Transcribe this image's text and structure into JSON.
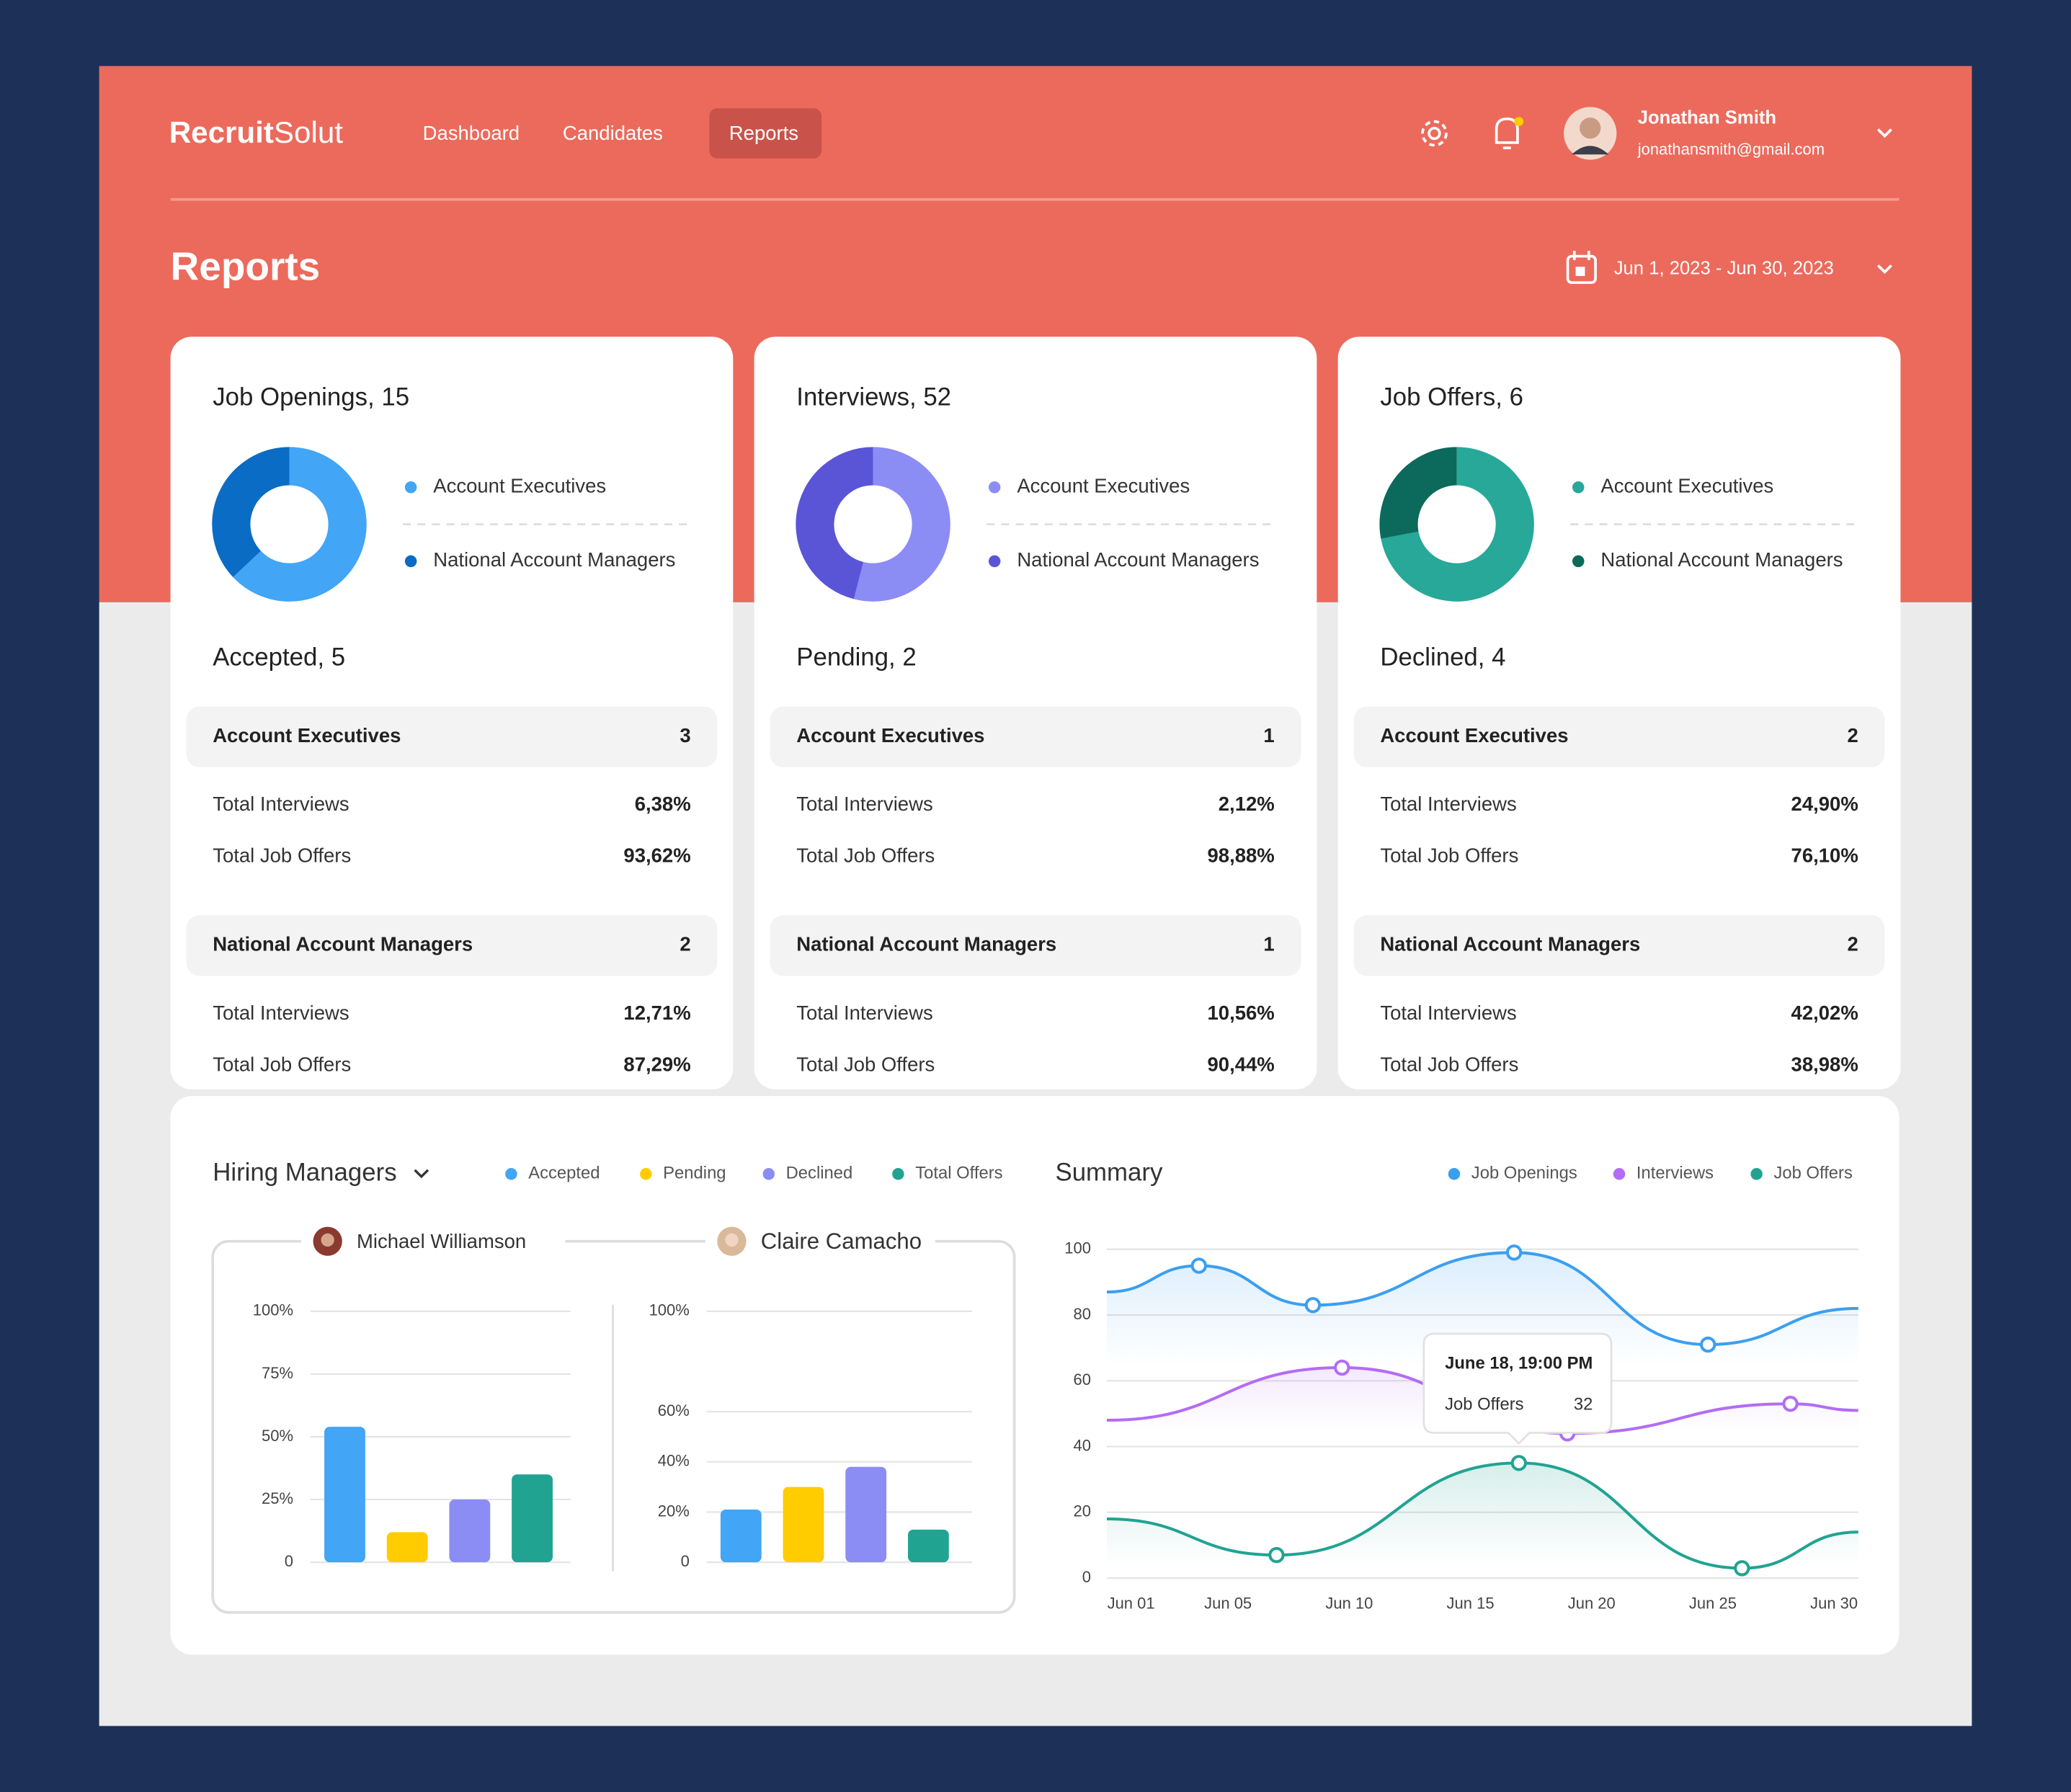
{
  "brand": {
    "bold": "Recruit",
    "light": "Solut"
  },
  "nav": {
    "links": [
      "Dashboard",
      "Candidates",
      "Reports"
    ],
    "active": 2
  },
  "user": {
    "name": "Jonathan Smith",
    "email": "jonathansmith@gmail.com"
  },
  "page_title": "Reports",
  "date_range": "Jun 1, 2023 - Jun 30, 2023",
  "cards": [
    {
      "title": "Job Openings, 15",
      "chart_data": {
        "type": "pie",
        "donut": true,
        "categories": [
          "Account Executives",
          "National Account Managers"
        ],
        "values": [
          63,
          37
        ],
        "colors": [
          "#42a5f5",
          "#0a6cc4"
        ]
      },
      "subtitle": "Accepted, 5",
      "groups": [
        {
          "name": "Account Executives",
          "count": 3,
          "rows": [
            {
              "label": "Total Interviews",
              "value": "6,38%"
            },
            {
              "label": "Total Job Offers",
              "value": "93,62%"
            }
          ]
        },
        {
          "name": "National Account Managers",
          "count": 2,
          "rows": [
            {
              "label": "Total Interviews",
              "value": "12,71%"
            },
            {
              "label": "Total Job Offers",
              "value": "87,29%"
            }
          ]
        }
      ]
    },
    {
      "title": "Interviews, 52",
      "chart_data": {
        "type": "pie",
        "donut": true,
        "categories": [
          "Account Executives",
          "National Account Managers"
        ],
        "values": [
          54,
          46
        ],
        "colors": [
          "#8c8cf5",
          "#5a55d6"
        ]
      },
      "subtitle": "Pending, 2",
      "groups": [
        {
          "name": "Account Executives",
          "count": 1,
          "rows": [
            {
              "label": "Total Interviews",
              "value": "2,12%"
            },
            {
              "label": "Total Job Offers",
              "value": "98,88%"
            }
          ]
        },
        {
          "name": "National Account Managers",
          "count": 1,
          "rows": [
            {
              "label": "Total Interviews",
              "value": "10,56%"
            },
            {
              "label": "Total Job Offers",
              "value": "90,44%"
            }
          ]
        }
      ]
    },
    {
      "title": "Job Offers, 6",
      "chart_data": {
        "type": "pie",
        "donut": true,
        "categories": [
          "Account Executives",
          "National Account Managers"
        ],
        "values": [
          72,
          28
        ],
        "colors": [
          "#27a899",
          "#0b6a5b"
        ]
      },
      "subtitle": "Declined, 4",
      "groups": [
        {
          "name": "Account Executives",
          "count": 2,
          "rows": [
            {
              "label": "Total Interviews",
              "value": "24,90%"
            },
            {
              "label": "Total Job Offers",
              "value": "76,10%"
            }
          ]
        },
        {
          "name": "National Account Managers",
          "count": 2,
          "rows": [
            {
              "label": "Total Interviews",
              "value": "42,02%"
            },
            {
              "label": "Total Job Offers",
              "value": "38,98%"
            }
          ]
        }
      ]
    }
  ],
  "hiring": {
    "title": "Hiring Managers",
    "categories": [
      "Accepted",
      "Pending",
      "Declined",
      "Total Offers"
    ],
    "colors": [
      "#42a5f5",
      "#ffcc00",
      "#8c8cf5",
      "#21a392"
    ],
    "charts": [
      {
        "manager": "Michael Williamson",
        "chart_data": {
          "type": "bar",
          "values": [
            54,
            12,
            25,
            35
          ],
          "ylim": [
            0,
            100
          ],
          "yticks": [
            0,
            {
              "value": 25,
              "label": "25%"
            },
            {
              "value": 50,
              "label": "50%"
            },
            {
              "value": 75,
              "label": "75%"
            },
            {
              "value": 100,
              "label": "100%"
            }
          ],
          "grid": true
        }
      },
      {
        "manager": "Claire Camacho",
        "chart_data": {
          "type": "bar",
          "values": [
            21,
            30,
            38,
            13
          ],
          "ylim": [
            0,
            100
          ],
          "yticks": [
            0,
            {
              "value": 20,
              "label": "20%"
            },
            {
              "value": 40,
              "label": "40%"
            },
            {
              "value": 60,
              "label": "60%"
            },
            {
              "value": 100,
              "label": "100%"
            }
          ],
          "grid": true
        }
      }
    ]
  },
  "summary": {
    "chart_data": {
      "type": "line",
      "title": "Summary",
      "grid": true,
      "xlim": [
        0,
        31
      ],
      "xticks": [
        {
          "value": 1,
          "label": "Jun 01"
        },
        {
          "value": 5,
          "label": "Jun 05"
        },
        {
          "value": 10,
          "label": "Jun 10"
        },
        {
          "value": 15,
          "label": "Jun 15"
        },
        {
          "value": 20,
          "label": "Jun 20"
        },
        {
          "value": 25,
          "label": "Jun 25"
        },
        {
          "value": 30,
          "label": "Jun 30"
        }
      ],
      "ylim": [
        0,
        100
      ],
      "yticks": [
        0,
        20,
        40,
        60,
        80,
        100
      ],
      "series": [
        {
          "name": "Job Openings",
          "color": "#3b9ff0",
          "x": [
            0,
            3.8,
            8.5,
            16.8,
            24.8,
            31
          ],
          "values": [
            87,
            95,
            83,
            99,
            71,
            82
          ]
        },
        {
          "name": "Interviews",
          "color": "#b36cf5",
          "x": [
            0,
            9.7,
            19,
            28.2,
            31
          ],
          "values": [
            48,
            64,
            44,
            53,
            51
          ]
        },
        {
          "name": "Job Offers",
          "color": "#21a392",
          "x": [
            0,
            7,
            17,
            26.2,
            31
          ],
          "values": [
            18,
            7,
            35,
            3,
            14
          ]
        }
      ],
      "tooltip": {
        "title": "June 18, 19:00 PM",
        "label": "Job Offers",
        "value": 32
      }
    }
  }
}
